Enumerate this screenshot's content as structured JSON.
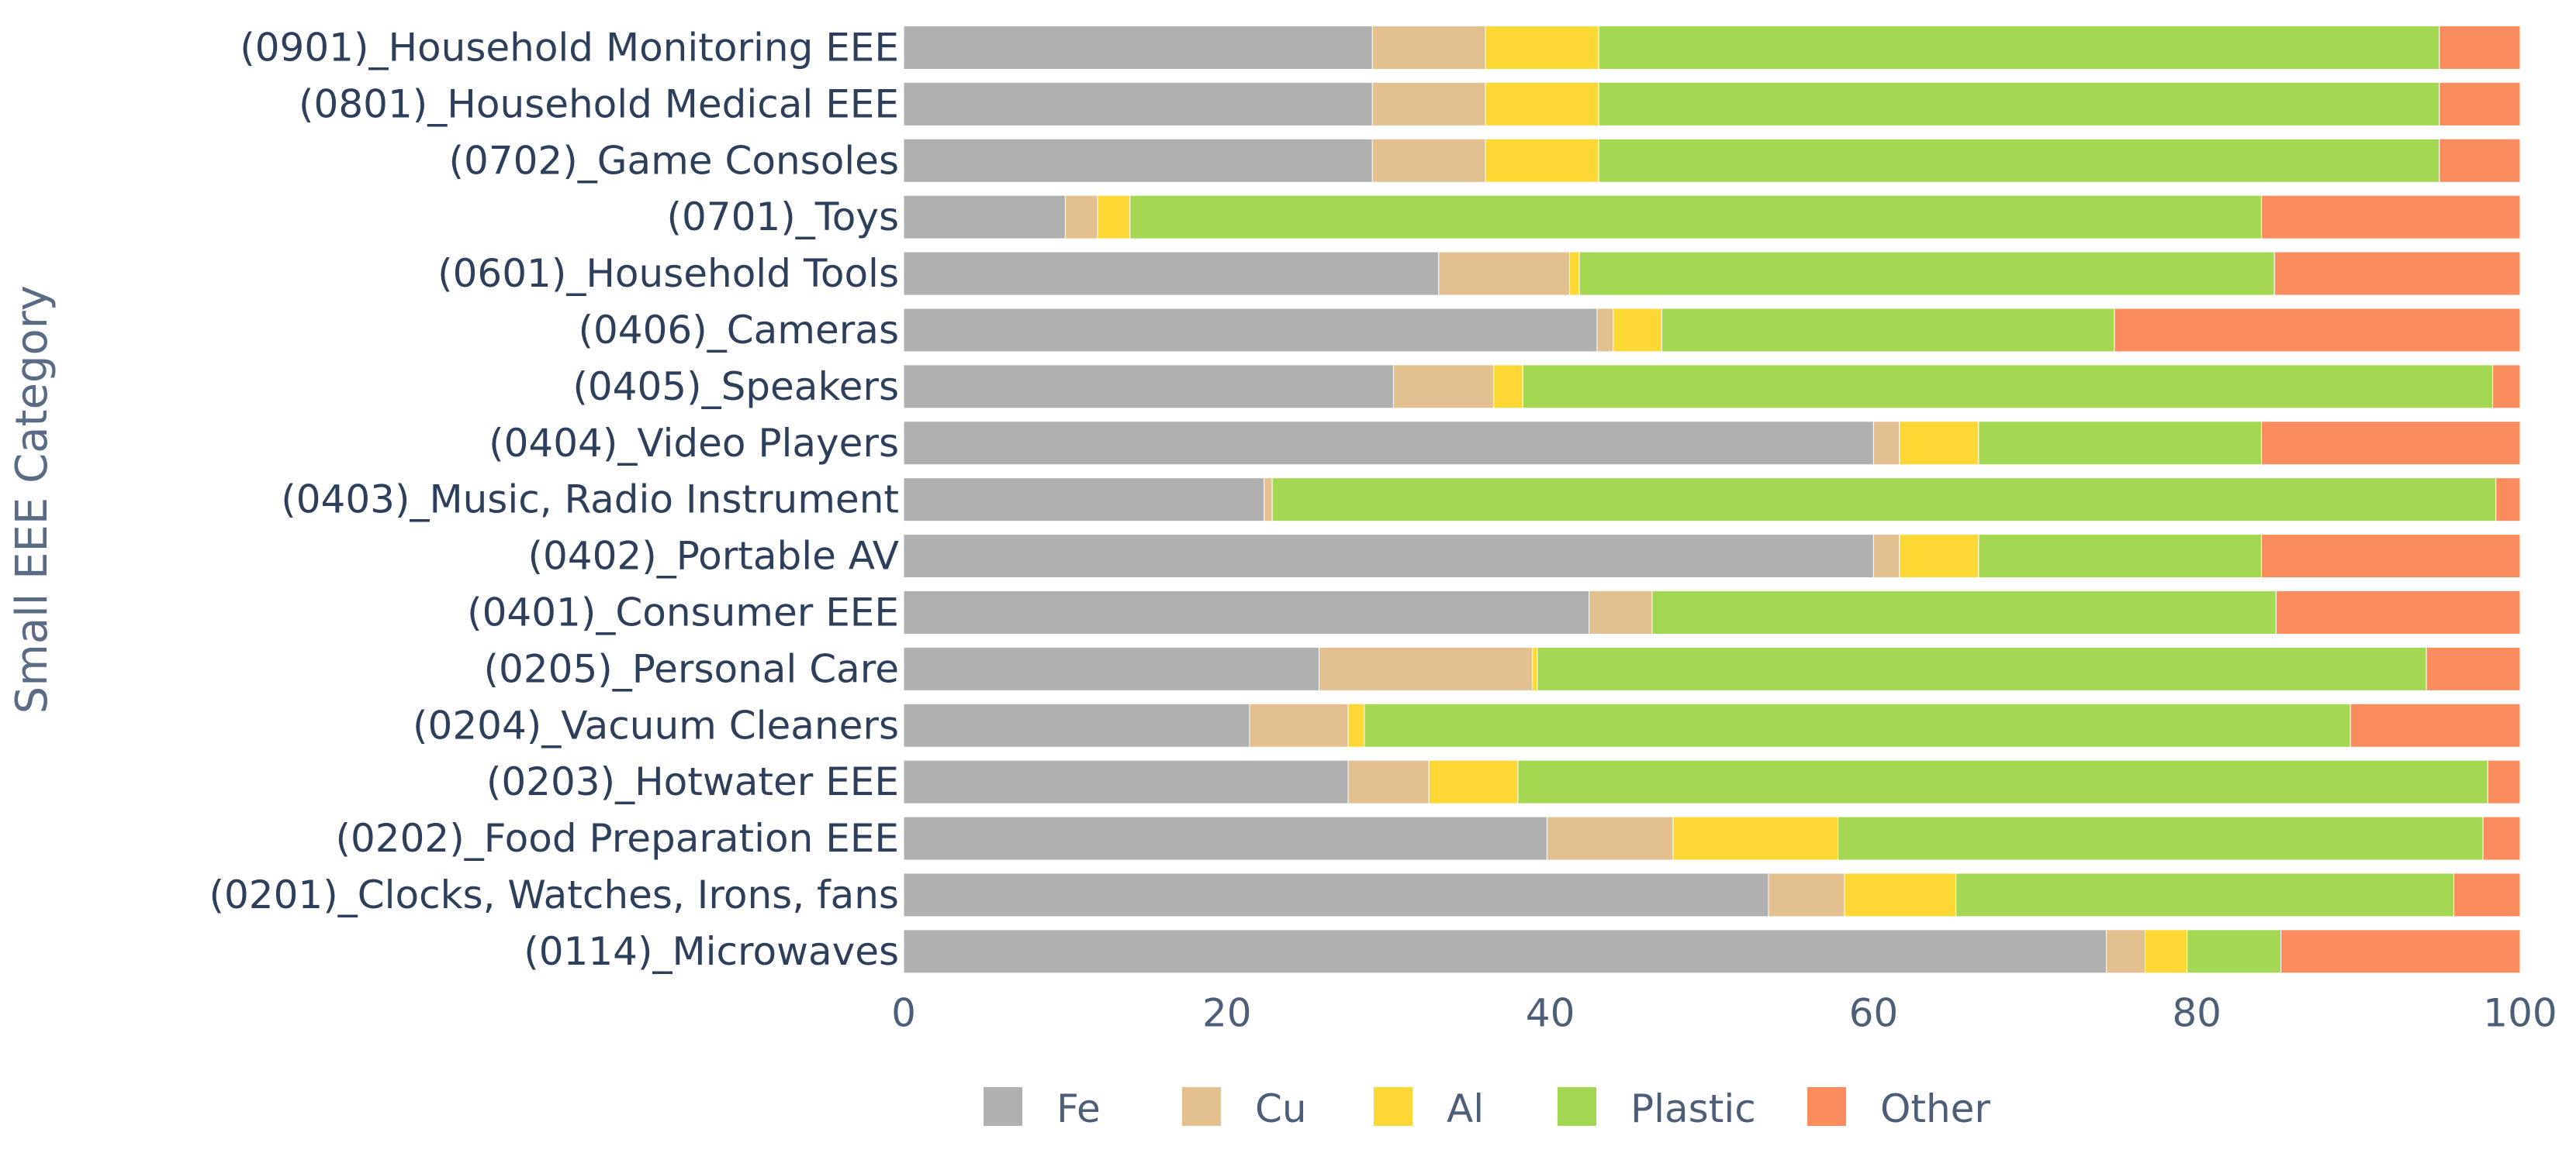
{
  "chart_data": {
    "type": "bar",
    "orientation": "horizontal",
    "stacked": true,
    "ylabel": "Small EEE Category",
    "xlabel": "",
    "xlim": [
      0,
      100
    ],
    "x_ticks": [
      "0",
      "20",
      "40",
      "60",
      "80",
      "100"
    ],
    "grid": false,
    "legend_position": "bottom",
    "categories": [
      "(0901)_Household Monitoring EEE",
      "(0801)_Household Medical EEE",
      "(0702)_Game Consoles",
      "(0701)_Toys",
      "(0601)_Household Tools",
      "(0406)_Cameras",
      "(0405)_Speakers",
      "(0404)_Video Players",
      "(0403)_Music, Radio Instrument",
      "(0402)_Portable AV",
      "(0401)_Consumer EEE",
      "(0205)_Personal Care",
      "(0204)_Vacuum Cleaners",
      "(0203)_Hotwater EEE",
      "(0202)_Food Preparation EEE",
      "(0201)_Clocks, Watches, Irons, fans",
      "(0114)_Microwaves"
    ],
    "series": [
      {
        "name": "Fe",
        "color": "#b0b0b0",
        "values": [
          29,
          29,
          29,
          10,
          33.1,
          42.9,
          30.3,
          60,
          22.3,
          60,
          42.4,
          25.7,
          21.4,
          27.5,
          39.8,
          53.5,
          74.4
        ]
      },
      {
        "name": "Cu",
        "color": "#e2c08f",
        "values": [
          7,
          7,
          7,
          2,
          8.1,
          1,
          6.2,
          1.6,
          0.5,
          1.6,
          3.9,
          13.2,
          6.1,
          5,
          7.8,
          4.7,
          2.4
        ]
      },
      {
        "name": "Al",
        "color": "#fdd835",
        "values": [
          7,
          7,
          7,
          2,
          0.6,
          3,
          1.8,
          4.9,
          0,
          4.9,
          0,
          0.3,
          1,
          5.5,
          10.2,
          6.9,
          2.6
        ]
      },
      {
        "name": "Plastic",
        "color": "#a5d852",
        "values": [
          52,
          52,
          52,
          70,
          43,
          28,
          60,
          17.5,
          75.7,
          17.5,
          38.6,
          55,
          61,
          60,
          39.9,
          30.8,
          5.8
        ]
      },
      {
        "name": "Other",
        "color": "#fb8c5e",
        "values": [
          5,
          5,
          5,
          16,
          15.2,
          25.1,
          1.7,
          16,
          1.5,
          16,
          15.1,
          5.8,
          10.5,
          2,
          2.3,
          4.1,
          14.8
        ]
      }
    ]
  }
}
